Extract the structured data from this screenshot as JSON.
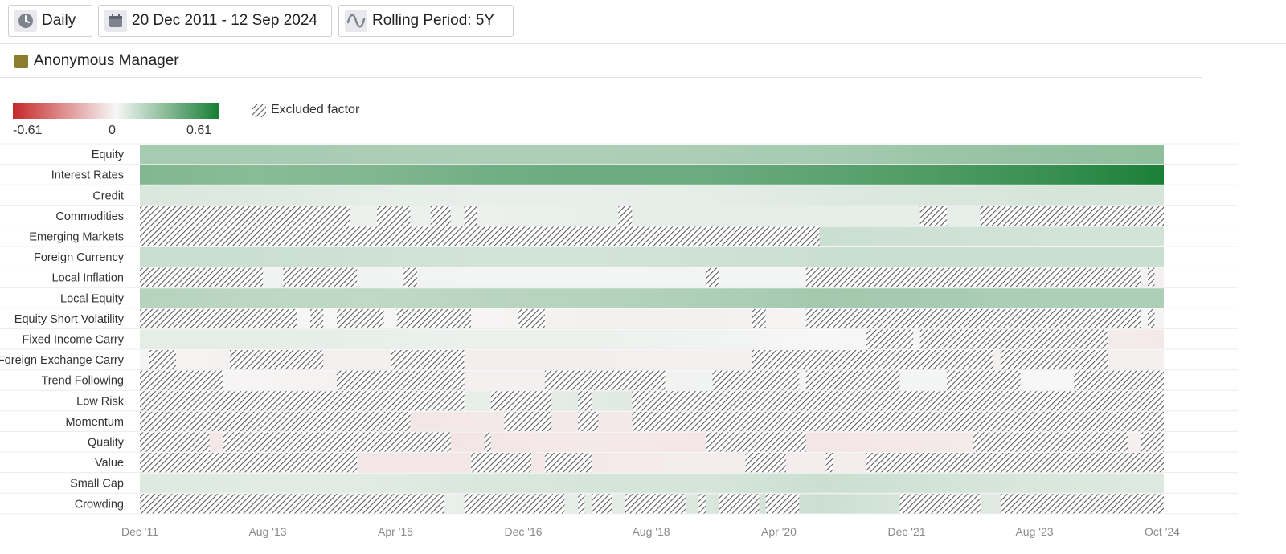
{
  "toolbar": {
    "frequency": {
      "label": "Daily",
      "icon": "clock-icon"
    },
    "date_range": {
      "label": "20 Dec 2011 - 12 Sep 2024",
      "icon": "calendar-icon"
    },
    "rolling": {
      "label": "Rolling Period: 5Y",
      "icon": "wave-icon"
    }
  },
  "manager": {
    "name": "Anonymous Manager",
    "color": "#8c7d2e"
  },
  "legend": {
    "min_label": "-0.61",
    "mid_label": "0",
    "max_label": "0.61",
    "min_color": "#c62828",
    "mid_color": "#f7f7f7",
    "max_color": "#177d34",
    "excluded_label": "Excluded factor"
  },
  "chart_data": {
    "type": "heatmap",
    "x_start": "2011-12-20",
    "x_end": "2024-09-12",
    "x_ticks": [
      "Dec '11",
      "Aug '13",
      "Apr '15",
      "Dec '16",
      "Aug '18",
      "Apr '20",
      "Dec '21",
      "Aug '23",
      "Oct '24"
    ],
    "value_range": [
      -0.61,
      0.61
    ],
    "rows": [
      {
        "label": "Equity",
        "excluded": [],
        "values": [
          0.22,
          0.22,
          0.21,
          0.2,
          0.2,
          0.21,
          0.22,
          0.25,
          0.27,
          0.28
        ]
      },
      {
        "label": "Interest Rates",
        "excluded": [],
        "values": [
          0.32,
          0.3,
          0.32,
          0.36,
          0.38,
          0.38,
          0.42,
          0.46,
          0.52,
          0.6
        ]
      },
      {
        "label": "Credit",
        "excluded": [],
        "values": [
          0.08,
          0.07,
          0.05,
          0.04,
          0.04,
          0.05,
          0.07,
          0.08,
          0.09,
          0.09
        ]
      },
      {
        "label": "Commodities",
        "excluded": [
          [
            "2011-12-20",
            "2014-08-01"
          ],
          [
            "2014-12-01",
            "2015-05-01"
          ],
          [
            "2015-08-01",
            "2015-11-01"
          ],
          [
            "2016-01-01",
            "2016-03-01"
          ],
          [
            "2017-12-01",
            "2018-02-01"
          ],
          [
            "2021-09-01",
            "2022-01-01"
          ],
          [
            "2022-06-01",
            "2024-09-12"
          ]
        ],
        "values": [
          0.04,
          0.04,
          0.03,
          0.03,
          0.04,
          0.05,
          0.05,
          0.04,
          0.04,
          0.03
        ]
      },
      {
        "label": "Emerging Markets",
        "excluded": [
          [
            "2011-12-20",
            "2020-06-01"
          ]
        ],
        "values": [
          0.1,
          0.1,
          0.1,
          0.09,
          0.1,
          0.12,
          0.12,
          0.11,
          0.1,
          0.1
        ]
      },
      {
        "label": "Foreign Currency",
        "excluded": [],
        "values": [
          0.12,
          0.12,
          0.11,
          0.1,
          0.1,
          0.11,
          0.12,
          0.12,
          0.12,
          0.12
        ]
      },
      {
        "label": "Local Inflation",
        "excluded": [
          [
            "2011-12-20",
            "2013-07-01"
          ],
          [
            "2013-10-01",
            "2014-09-01"
          ],
          [
            "2015-04-01",
            "2015-06-01"
          ],
          [
            "2019-01-01",
            "2019-03-01"
          ],
          [
            "2020-04-01",
            "2024-06-01"
          ],
          [
            "2024-07-01",
            "2024-08-01"
          ]
        ],
        "values": [
          0.02,
          0.02,
          0.02,
          0.01,
          0.01,
          0.01,
          0.01,
          0.01,
          0.0,
          -0.02
        ]
      },
      {
        "label": "Local Equity",
        "excluded": [],
        "values": [
          0.18,
          0.16,
          0.15,
          0.17,
          0.18,
          0.2,
          0.23,
          0.22,
          0.2,
          0.2
        ]
      },
      {
        "label": "Equity Short Volatility",
        "excluded": [
          [
            "2011-12-20",
            "2013-12-01"
          ],
          [
            "2014-02-01",
            "2014-04-01"
          ],
          [
            "2014-06-01",
            "2015-01-01"
          ],
          [
            "2015-03-01",
            "2016-02-01"
          ],
          [
            "2016-09-01",
            "2017-01-01"
          ],
          [
            "2019-08-01",
            "2019-10-01"
          ],
          [
            "2020-04-01",
            "2024-06-01"
          ],
          [
            "2024-07-01",
            "2024-08-01"
          ]
        ],
        "values": [
          0.02,
          0.01,
          0.0,
          -0.01,
          -0.02,
          -0.02,
          -0.01,
          0.0,
          0.0,
          -0.01
        ]
      },
      {
        "label": "Fixed Income Carry",
        "excluded": [
          [
            "2021-01-01",
            "2021-08-01"
          ],
          [
            "2021-09-01",
            "2024-01-01"
          ]
        ],
        "values": [
          0.05,
          0.05,
          0.04,
          0.03,
          0.03,
          0.02,
          0.0,
          -0.01,
          -0.02,
          -0.04
        ]
      },
      {
        "label": "Foreign Exchange Carry",
        "excluded": [
          [
            "2012-02-01",
            "2012-06-01"
          ],
          [
            "2013-02-01",
            "2014-04-01"
          ],
          [
            "2015-02-01",
            "2016-01-01"
          ],
          [
            "2019-08-01",
            "2020-04-01"
          ],
          [
            "2020-04-01",
            "2022-08-01"
          ],
          [
            "2022-09-01",
            "2024-01-01"
          ]
        ],
        "values": [
          -0.01,
          -0.02,
          -0.02,
          -0.03,
          -0.03,
          -0.02,
          -0.02,
          -0.02,
          -0.02,
          -0.02
        ]
      },
      {
        "label": "Trend Following",
        "excluded": [
          [
            "2011-12-20",
            "2013-01-01"
          ],
          [
            "2014-06-01",
            "2016-01-01"
          ],
          [
            "2017-01-01",
            "2018-07-01"
          ],
          [
            "2019-02-01",
            "2020-03-01"
          ],
          [
            "2020-04-01",
            "2021-06-01"
          ],
          [
            "2022-01-01",
            "2022-12-01"
          ],
          [
            "2023-08-01",
            "2024-09-12"
          ]
        ],
        "values": [
          0.0,
          -0.01,
          -0.02,
          -0.02,
          -0.02,
          0.02,
          0.01,
          0.01,
          0.0,
          0.0
        ]
      },
      {
        "label": "Low Risk",
        "excluded": [
          [
            "2011-12-20",
            "2016-01-01"
          ],
          [
            "2016-05-01",
            "2017-02-01"
          ],
          [
            "2017-06-01",
            "2017-08-01"
          ],
          [
            "2018-02-01",
            "2024-09-12"
          ]
        ],
        "values": [
          0.02,
          0.02,
          0.03,
          0.04,
          0.06,
          0.07,
          0.06,
          0.05,
          0.04,
          0.04
        ]
      },
      {
        "label": "Momentum",
        "excluded": [
          [
            "2011-12-20",
            "2015-05-01"
          ],
          [
            "2016-07-01",
            "2017-02-01"
          ],
          [
            "2017-06-01",
            "2017-09-01"
          ],
          [
            "2018-02-01",
            "2024-09-12"
          ]
        ],
        "values": [
          -0.05,
          -0.06,
          -0.06,
          -0.04,
          -0.04,
          -0.04,
          -0.04,
          -0.04,
          -0.04,
          -0.04
        ]
      },
      {
        "label": "Quality",
        "excluded": [
          [
            "2011-12-20",
            "2012-11-01"
          ],
          [
            "2013-01-01",
            "2015-11-01"
          ],
          [
            "2016-04-01",
            "2016-05-01"
          ],
          [
            "2019-01-01",
            "2020-04-01"
          ],
          [
            "2022-05-01",
            "2024-04-01"
          ],
          [
            "2024-06-01",
            "2024-09-12"
          ]
        ],
        "values": [
          -0.04,
          -0.05,
          -0.06,
          -0.05,
          -0.04,
          -0.05,
          -0.05,
          -0.04,
          -0.03,
          -0.02
        ]
      },
      {
        "label": "Value",
        "excluded": [
          [
            "2011-12-20",
            "2014-09-01"
          ],
          [
            "2016-02-01",
            "2016-11-01"
          ],
          [
            "2017-01-01",
            "2017-08-01"
          ],
          [
            "2019-07-01",
            "2020-01-01"
          ],
          [
            "2020-07-01",
            "2020-08-01"
          ],
          [
            "2021-01-01",
            "2024-09-12"
          ]
        ],
        "values": [
          -0.03,
          -0.04,
          -0.05,
          -0.05,
          -0.04,
          -0.03,
          -0.03,
          -0.03,
          -0.03,
          -0.03
        ]
      },
      {
        "label": "Small Cap",
        "excluded": [],
        "values": [
          0.07,
          0.06,
          0.06,
          0.08,
          0.09,
          0.09,
          0.12,
          0.1,
          0.08,
          0.07
        ]
      },
      {
        "label": "Crowding",
        "excluded": [
          [
            "2011-12-20",
            "2015-10-01"
          ],
          [
            "2016-01-01",
            "2017-04-01"
          ],
          [
            "2017-06-01",
            "2017-07-01"
          ],
          [
            "2017-08-01",
            "2017-11-01"
          ],
          [
            "2018-01-01",
            "2018-10-01"
          ],
          [
            "2018-12-01",
            "2019-01-01"
          ],
          [
            "2019-03-01",
            "2019-09-01"
          ],
          [
            "2019-10-01",
            "2020-03-01"
          ],
          [
            "2021-06-01",
            "2022-06-01"
          ],
          [
            "2022-09-01",
            "2024-09-12"
          ]
        ],
        "values": [
          0.03,
          0.03,
          0.03,
          0.04,
          0.05,
          0.08,
          0.12,
          0.08,
          0.05,
          0.04
        ]
      }
    ]
  }
}
